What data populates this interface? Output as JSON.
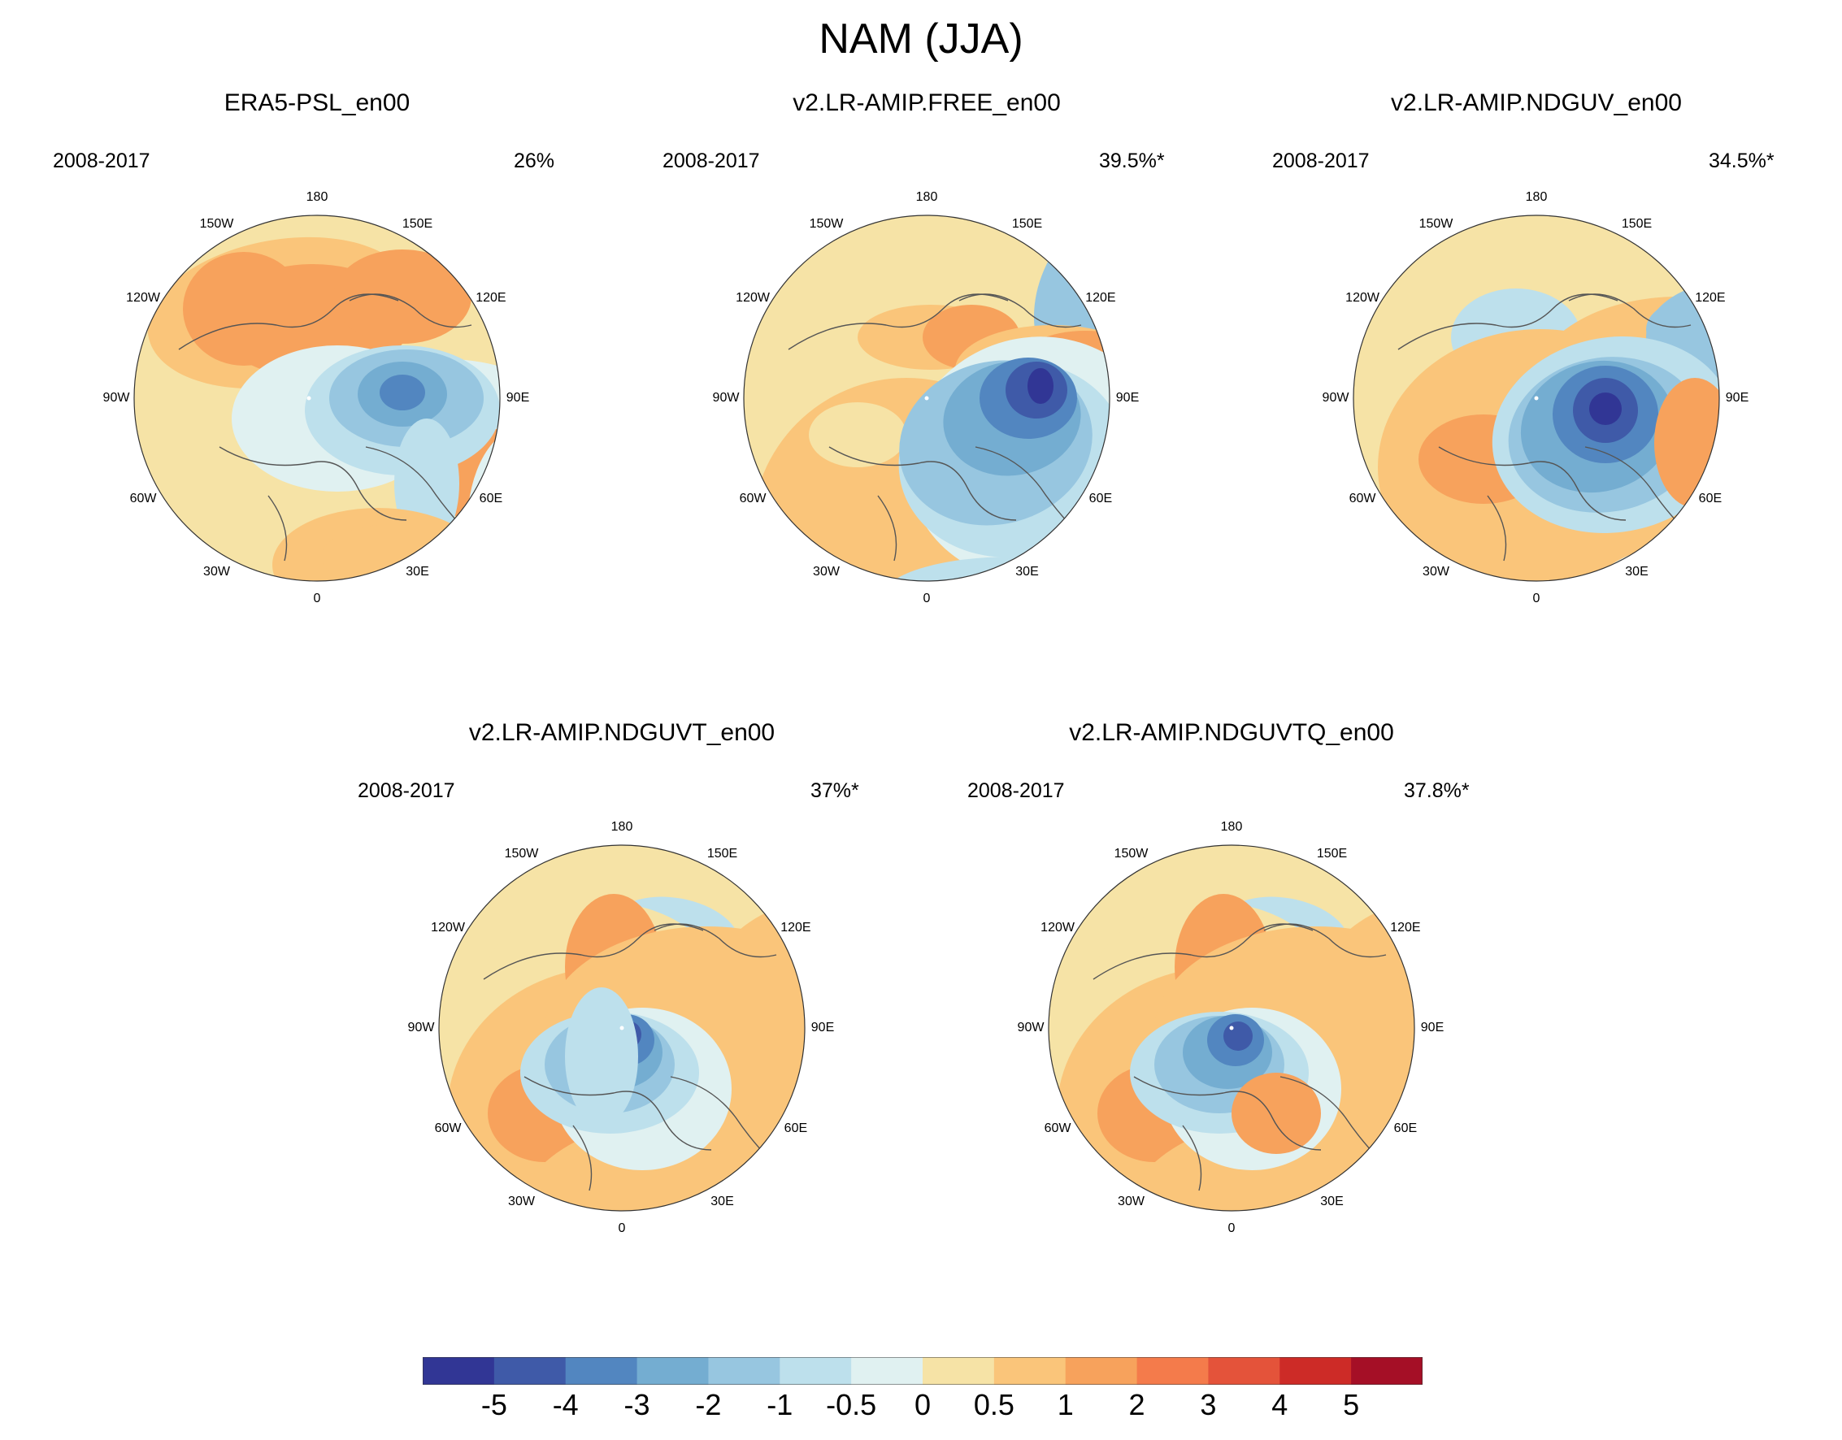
{
  "figure": {
    "title": "NAM (JJA)"
  },
  "panels": [
    {
      "id": "era5",
      "title": "ERA5-PSL_en00",
      "period": "2008-2017",
      "variance": "26%"
    },
    {
      "id": "free",
      "title": "v2.LR-AMIP.FREE_en00",
      "period": "2008-2017",
      "variance": "39.5%*"
    },
    {
      "id": "ndguv",
      "title": "v2.LR-AMIP.NDGUV_en00",
      "period": "2008-2017",
      "variance": "34.5%*"
    },
    {
      "id": "ndguvt",
      "title": "v2.LR-AMIP.NDGUVT_en00",
      "period": "2008-2017",
      "variance": "37%*"
    },
    {
      "id": "ndguvtq",
      "title": "v2.LR-AMIP.NDGUVTQ_en00",
      "period": "2008-2017",
      "variance": "37.8%*"
    }
  ],
  "longitude_labels": {
    "top": "180",
    "top_right": "150E",
    "upper_right": "120E",
    "right": "90E",
    "lower_right": "60E",
    "bottom_right": "30E",
    "bottom": "0",
    "bottom_left": "30W",
    "lower_left": "60W",
    "left": "90W",
    "upper_left": "120W",
    "top_left": "150W"
  },
  "colorbar": {
    "labels": [
      "-5",
      "-4",
      "-3",
      "-2",
      "-1",
      "-0.5",
      "0",
      "0.5",
      "1",
      "2",
      "3",
      "4",
      "5"
    ],
    "colors": [
      "#313695",
      "#3f5aa8",
      "#5286c0",
      "#74add1",
      "#97c6e0",
      "#bde0ec",
      "#e0f1f1",
      "#f6e3a6",
      "#fac57a",
      "#f7a25c",
      "#f47b4b",
      "#e4533a",
      "#cd2b27",
      "#a50f26"
    ]
  }
}
